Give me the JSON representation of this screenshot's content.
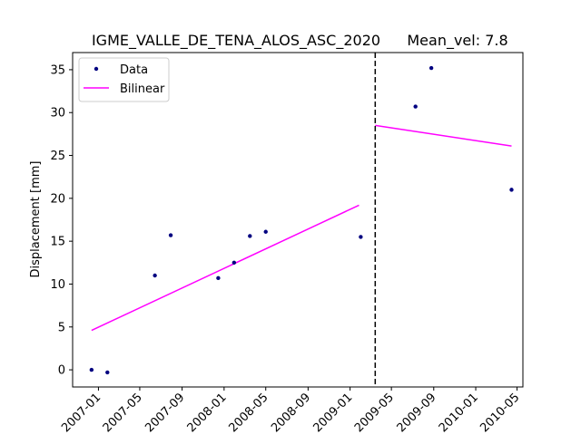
{
  "chart_data": {
    "type": "scatter",
    "title": "IGME_VALLE_DE_TENA_ALOS_ASC_2020",
    "subtitle": "Mean_vel: 7.8",
    "xlabel": "",
    "ylabel": "Displacement [mm]",
    "x_axis_type": "date",
    "xlim": [
      "2006-10-18",
      "2010-05-18"
    ],
    "ylim": [
      -2,
      37
    ],
    "x_ticks": [
      "2007-01",
      "2007-05",
      "2007-09",
      "2008-01",
      "2008-05",
      "2008-09",
      "2009-01",
      "2009-05",
      "2009-09",
      "2010-01",
      "2010-05"
    ],
    "y_ticks": [
      0,
      5,
      10,
      15,
      20,
      25,
      30,
      35
    ],
    "grid": false,
    "legend_position": "top-left",
    "series": [
      {
        "name": "Data",
        "kind": "scatter",
        "color": "#000080",
        "points": [
          {
            "x": "2006-12-12",
            "y": 0.0
          },
          {
            "x": "2007-01-27",
            "y": -0.3
          },
          {
            "x": "2007-06-14",
            "y": 11.0
          },
          {
            "x": "2007-07-30",
            "y": 15.7
          },
          {
            "x": "2007-12-15",
            "y": 10.7
          },
          {
            "x": "2008-01-30",
            "y": 12.5
          },
          {
            "x": "2008-03-16",
            "y": 15.6
          },
          {
            "x": "2008-05-01",
            "y": 16.1
          },
          {
            "x": "2009-02-01",
            "y": 15.5
          },
          {
            "x": "2009-07-10",
            "y": 30.7
          },
          {
            "x": "2009-08-25",
            "y": 35.2
          },
          {
            "x": "2010-04-15",
            "y": 21.0
          }
        ]
      },
      {
        "name": "Bilinear",
        "kind": "line",
        "color": "#ff00ff",
        "segments": [
          [
            {
              "x": "2006-12-12",
              "y": 4.6
            },
            {
              "x": "2009-01-27",
              "y": 19.2
            }
          ],
          [
            {
              "x": "2009-03-15",
              "y": 28.5
            },
            {
              "x": "2010-04-15",
              "y": 26.1
            }
          ]
        ]
      }
    ],
    "vlines": [
      {
        "x": "2009-03-15",
        "style": "dashed",
        "color": "#000000"
      }
    ]
  }
}
